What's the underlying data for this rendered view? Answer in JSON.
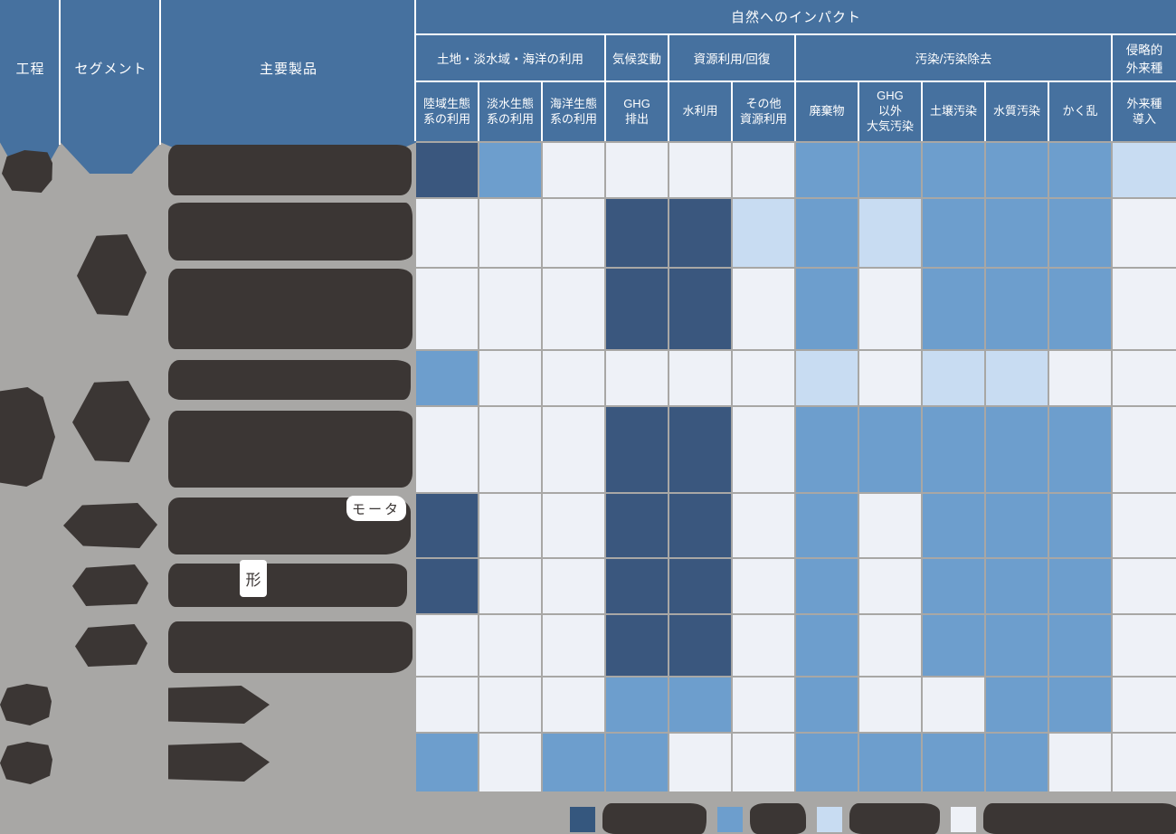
{
  "figure": {
    "title": "自然へのインパクト",
    "left_headers": {
      "process": "工程",
      "segment": "セグメント",
      "products": "主要製品"
    }
  },
  "colors": {
    "header_blue": "#46719f",
    "page_gray": "#a8a7a5",
    "redaction_dark": "#3b3634",
    "separator_white": "#ffffff"
  },
  "legend": {
    "swatches": [
      {
        "name": "level-3-darkest",
        "color": "#35577e",
        "label_redacted": true
      },
      {
        "name": "level-2",
        "color": "#6d9ecd",
        "label_redacted": true
      },
      {
        "name": "level-1",
        "color": "#c8dcf2",
        "label_redacted": true
      },
      {
        "name": "level-0-lightest",
        "color": "#eef1f7",
        "label_redacted": true
      }
    ]
  },
  "chart_data": {
    "type": "heatmap",
    "title": "自然へのインパクト",
    "row_header_columns": [
      "工程",
      "セグメント",
      "主要製品"
    ],
    "column_groups": [
      {
        "label": "土地・淡水域・海洋の利用",
        "span": 3
      },
      {
        "label": "気候変動",
        "span": 1
      },
      {
        "label": "資源利用/回復",
        "span": 2
      },
      {
        "label": "汚染/汚染除去",
        "span": 5
      },
      {
        "label": "侵略的\n外来種",
        "span": 1
      }
    ],
    "columns": [
      "陸域生態\n系の利用",
      "淡水生態\n系の利用",
      "海洋生態\n系の利用",
      "GHG\n排出",
      "水利用",
      "その他\n資源利用",
      "廃棄物",
      "GHG\n以外\n大気汚染",
      "土壌汚染",
      "水質汚染",
      "かく乱",
      "外来種\n導入"
    ],
    "value_scale_note": "4-level intensity heat map; 3=darkest blue, 2=medium blue, 1=light blue, 0=near-white. Legend labels and all row labels are redacted (blacked out) in the source image.",
    "palette": {
      "3": "#3a577e",
      "2": "#6d9ecd",
      "1": "#c8dcf2",
      "0": "#eef1f7"
    },
    "legend_position": "bottom-right",
    "rows": [
      {
        "row": 1,
        "label_redacted": true,
        "levels": [
          3,
          2,
          0,
          0,
          0,
          0,
          2,
          2,
          2,
          2,
          2,
          1
        ]
      },
      {
        "row": 2,
        "label_redacted": true,
        "levels": [
          0,
          0,
          0,
          3,
          3,
          1,
          2,
          1,
          2,
          2,
          2,
          0
        ]
      },
      {
        "row": 3,
        "label_redacted": true,
        "levels": [
          0,
          0,
          0,
          3,
          3,
          0,
          2,
          0,
          2,
          2,
          2,
          0
        ]
      },
      {
        "row": 4,
        "label_redacted": true,
        "levels": [
          2,
          0,
          0,
          0,
          0,
          0,
          1,
          0,
          1,
          1,
          0,
          0
        ]
      },
      {
        "row": 5,
        "label_redacted": true,
        "levels": [
          0,
          0,
          0,
          3,
          3,
          0,
          2,
          2,
          2,
          2,
          2,
          0
        ]
      },
      {
        "row": 6,
        "label_redacted": true,
        "visible_fragment": "モータ",
        "levels": [
          3,
          0,
          0,
          3,
          3,
          0,
          2,
          0,
          2,
          2,
          2,
          0
        ]
      },
      {
        "row": 7,
        "label_redacted": true,
        "visible_fragment": "形",
        "levels": [
          3,
          0,
          0,
          3,
          3,
          0,
          2,
          0,
          2,
          2,
          2,
          0
        ]
      },
      {
        "row": 8,
        "label_redacted": true,
        "levels": [
          0,
          0,
          0,
          3,
          3,
          0,
          2,
          0,
          2,
          2,
          2,
          0
        ]
      },
      {
        "row": 9,
        "label_redacted": true,
        "levels": [
          0,
          0,
          0,
          2,
          2,
          0,
          2,
          0,
          0,
          2,
          2,
          0
        ]
      },
      {
        "row": 10,
        "label_redacted": true,
        "levels": [
          2,
          0,
          2,
          2,
          0,
          0,
          2,
          2,
          2,
          2,
          0,
          0
        ]
      }
    ]
  }
}
